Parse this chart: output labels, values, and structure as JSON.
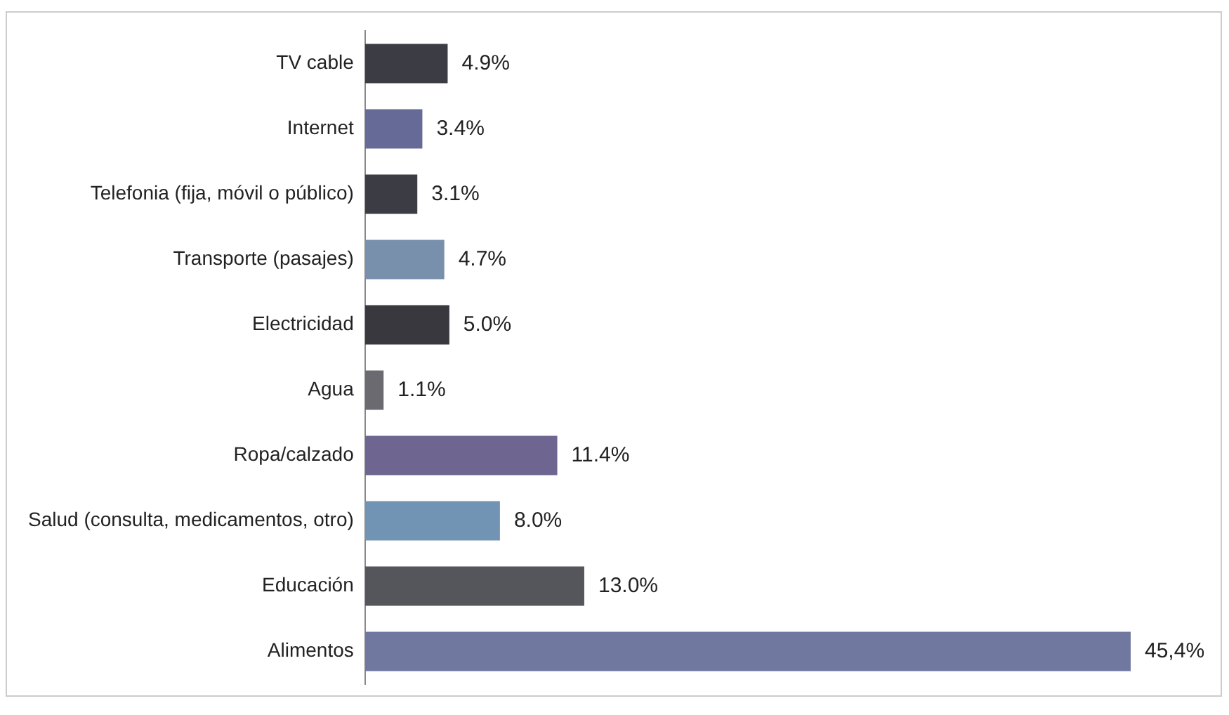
{
  "chart_data": {
    "type": "bar",
    "orientation": "horizontal",
    "categories": [
      "TV cable",
      "Internet",
      "Telefonia (fija, móvil o público)",
      "Transporte (pasajes)",
      "Electricidad",
      "Agua",
      "Ropa/calzado",
      "Salud (consulta, medicamentos, otro)",
      "Educación",
      "Alimentos"
    ],
    "values": [
      4.9,
      3.4,
      3.1,
      4.7,
      5.0,
      1.1,
      11.4,
      8.0,
      13.0,
      45.4
    ],
    "value_labels": [
      "4.9%",
      "3.4%",
      "3.1%",
      "4.7%",
      "5.0%",
      "1.1%",
      "11.4%",
      "8.0%",
      "13.0%",
      "45,4%"
    ],
    "colors": [
      "#3c3c44",
      "#666a96",
      "#3c3c44",
      "#7890ac",
      "#38383e",
      "#6a6a70",
      "#6e6690",
      "#7294b4",
      "#55555c",
      "#7078a0"
    ],
    "legend": false
  }
}
